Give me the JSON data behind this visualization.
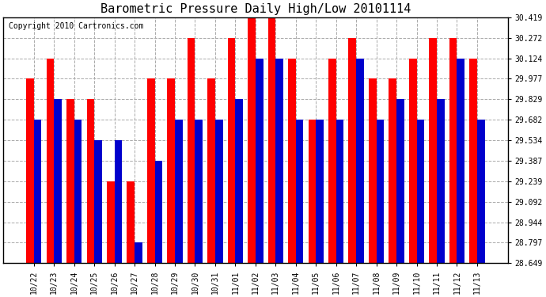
{
  "title": "Barometric Pressure Daily High/Low 20101114",
  "copyright": "Copyright 2010 Cartronics.com",
  "categories": [
    "10/22",
    "10/23",
    "10/24",
    "10/25",
    "10/26",
    "10/27",
    "10/28",
    "10/29",
    "10/30",
    "10/31",
    "11/01",
    "11/02",
    "11/03",
    "11/04",
    "11/05",
    "11/06",
    "11/07",
    "11/08",
    "11/09",
    "11/10",
    "11/11",
    "11/12",
    "11/13"
  ],
  "highs": [
    29.977,
    30.124,
    29.829,
    29.829,
    29.239,
    29.239,
    29.977,
    29.977,
    30.272,
    29.977,
    30.272,
    30.419,
    30.419,
    30.124,
    29.682,
    30.124,
    30.272,
    29.977,
    29.977,
    30.124,
    30.272,
    30.272,
    30.124
  ],
  "lows": [
    29.682,
    29.829,
    29.682,
    29.534,
    29.534,
    28.797,
    29.387,
    29.682,
    29.682,
    29.682,
    29.829,
    30.124,
    30.124,
    29.682,
    29.682,
    29.682,
    30.124,
    29.682,
    29.829,
    29.682,
    29.829,
    30.124,
    29.682
  ],
  "high_color": "#ff0000",
  "low_color": "#0000cc",
  "bg_color": "#ffffff",
  "plot_bg_color": "#ffffff",
  "ylim_min": 28.649,
  "ylim_max": 30.419,
  "yticks": [
    28.649,
    28.797,
    28.944,
    29.092,
    29.239,
    29.387,
    29.534,
    29.682,
    29.829,
    29.977,
    30.124,
    30.272,
    30.419
  ],
  "grid_color": "#aaaaaa",
  "title_fontsize": 11,
  "copyright_fontsize": 7,
  "tick_fontsize": 7,
  "bar_width": 0.38
}
